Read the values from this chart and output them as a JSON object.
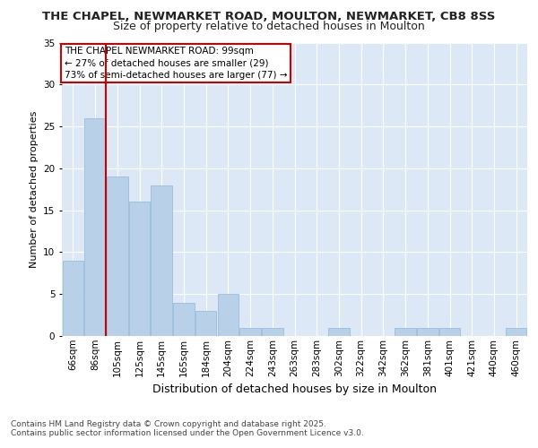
{
  "title1": "THE CHAPEL, NEWMARKET ROAD, MOULTON, NEWMARKET, CB8 8SS",
  "title2": "Size of property relative to detached houses in Moulton",
  "xlabel": "Distribution of detached houses by size in Moulton",
  "ylabel": "Number of detached properties",
  "categories": [
    "66sqm",
    "86sqm",
    "105sqm",
    "125sqm",
    "145sqm",
    "165sqm",
    "184sqm",
    "204sqm",
    "224sqm",
    "243sqm",
    "263sqm",
    "283sqm",
    "302sqm",
    "322sqm",
    "342sqm",
    "362sqm",
    "381sqm",
    "401sqm",
    "421sqm",
    "440sqm",
    "460sqm"
  ],
  "values": [
    9,
    26,
    19,
    16,
    18,
    4,
    3,
    5,
    1,
    1,
    0,
    0,
    1,
    0,
    0,
    1,
    1,
    1,
    0,
    0,
    1
  ],
  "bar_color": "#b8d0e8",
  "bar_edge_color": "#90b8d8",
  "annotation_title": "THE CHAPEL NEWMARKET ROAD: 99sqm",
  "annotation_line1": "← 27% of detached houses are smaller (29)",
  "annotation_line2": "73% of semi-detached houses are larger (77) →",
  "annotation_box_color": "#ffffff",
  "annotation_box_edge": "#cc0000",
  "vline_color": "#cc0000",
  "vline_x": 1.5,
  "ylim": [
    0,
    35
  ],
  "yticks": [
    0,
    5,
    10,
    15,
    20,
    25,
    30,
    35
  ],
  "plot_bg_color": "#dce8f5",
  "fig_bg_color": "#ffffff",
  "footer1": "Contains HM Land Registry data © Crown copyright and database right 2025.",
  "footer2": "Contains public sector information licensed under the Open Government Licence v3.0.",
  "title1_fontsize": 9.5,
  "title2_fontsize": 9,
  "ylabel_fontsize": 8,
  "xlabel_fontsize": 9,
  "tick_fontsize": 7.5,
  "footer_fontsize": 6.5,
  "ann_fontsize": 7.5
}
